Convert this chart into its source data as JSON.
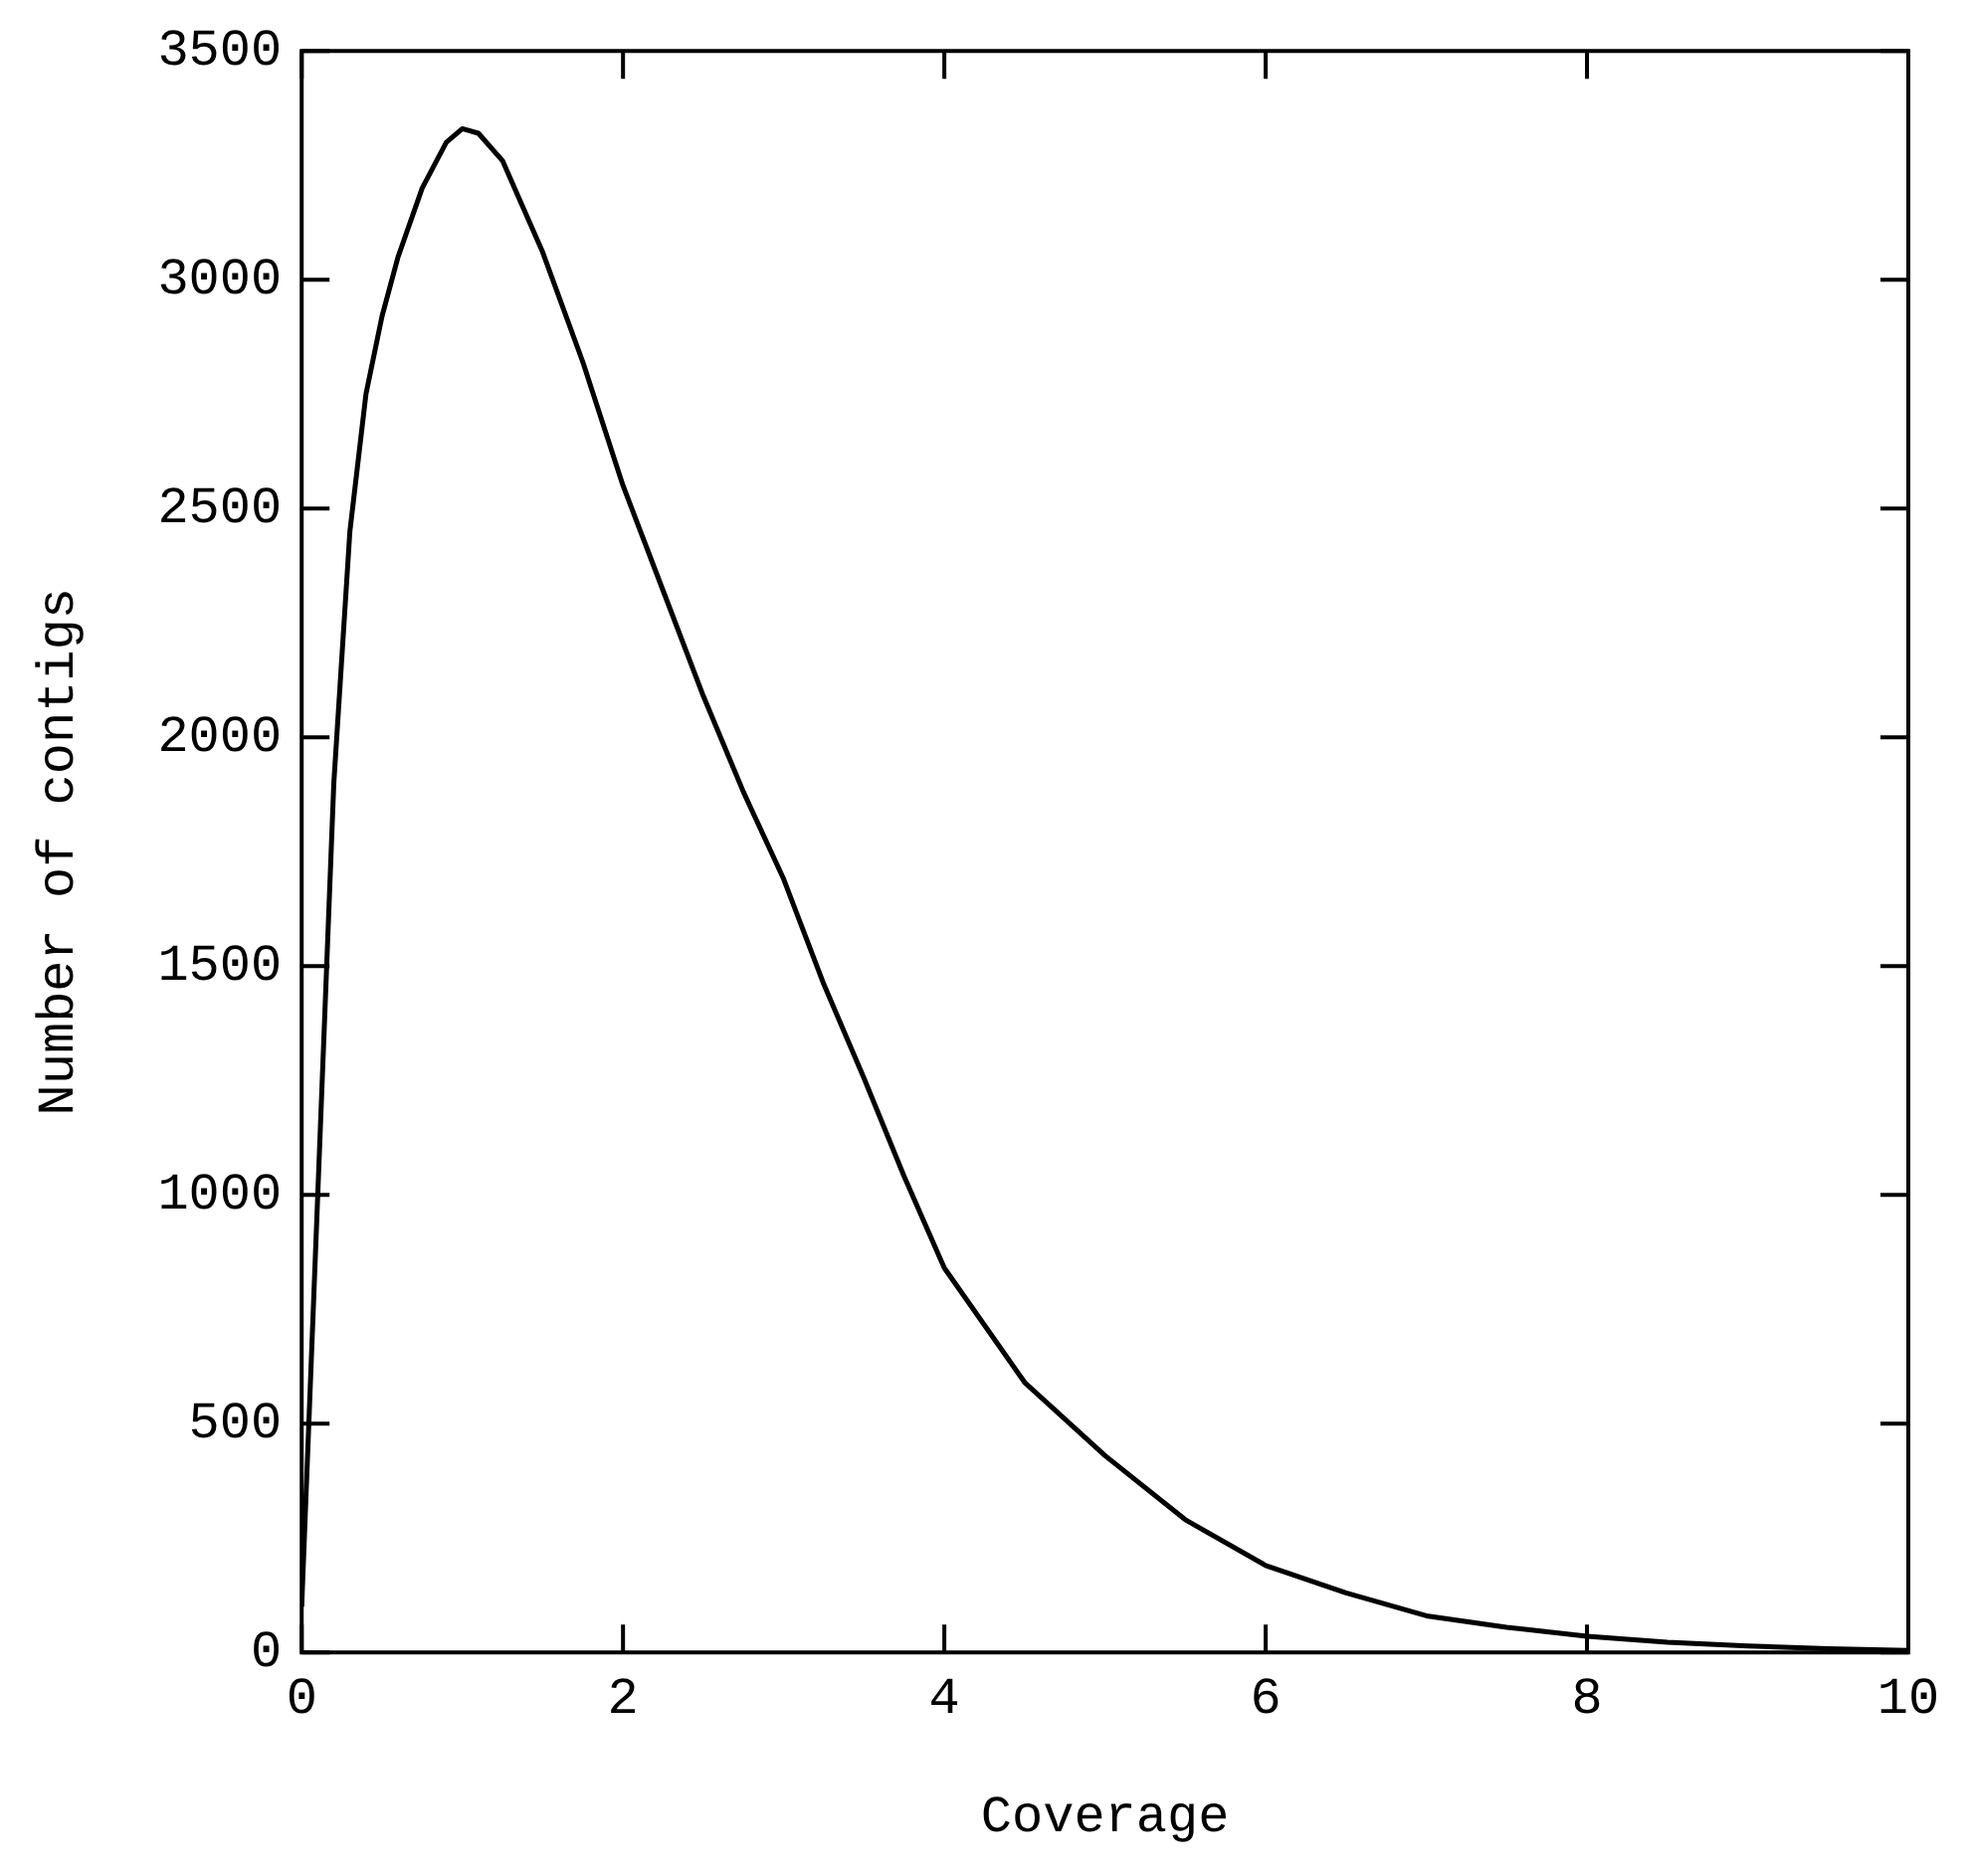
{
  "chart_data": {
    "type": "line",
    "xlabel": "Coverage",
    "ylabel": "Number of contigs",
    "series": [
      {
        "color": "#000000",
        "x": [
          0,
          0.05,
          0.1,
          0.2,
          0.3,
          0.4,
          0.5,
          0.6,
          0.75,
          0.9,
          1.0,
          1.1,
          1.25,
          1.5,
          1.75,
          2,
          2.25,
          2.5,
          2.75,
          3,
          3.25,
          3.5,
          3.75,
          4,
          4.5,
          5,
          5.5,
          6,
          6.5,
          7,
          7.5,
          8,
          8.5,
          9,
          9.5,
          10
        ],
        "values": [
          100,
          550,
          1000,
          1900,
          2450,
          2750,
          2920,
          3050,
          3200,
          3300,
          3330,
          3320,
          3260,
          3060,
          2820,
          2550,
          2320,
          2090,
          1880,
          1690,
          1460,
          1255,
          1040,
          840,
          590,
          430,
          290,
          190,
          130,
          80,
          55,
          35,
          22,
          14,
          8,
          4
        ]
      }
    ],
    "xlim": [
      0,
      10
    ],
    "xticks": [
      0,
      2,
      4,
      6,
      8,
      10
    ],
    "ylim": [
      0,
      3500
    ],
    "yticks": [
      0,
      500,
      1000,
      1500,
      2000,
      2500,
      3000,
      3500
    ],
    "grid": false,
    "legend": false,
    "marker": "none",
    "line_style": "solid"
  }
}
